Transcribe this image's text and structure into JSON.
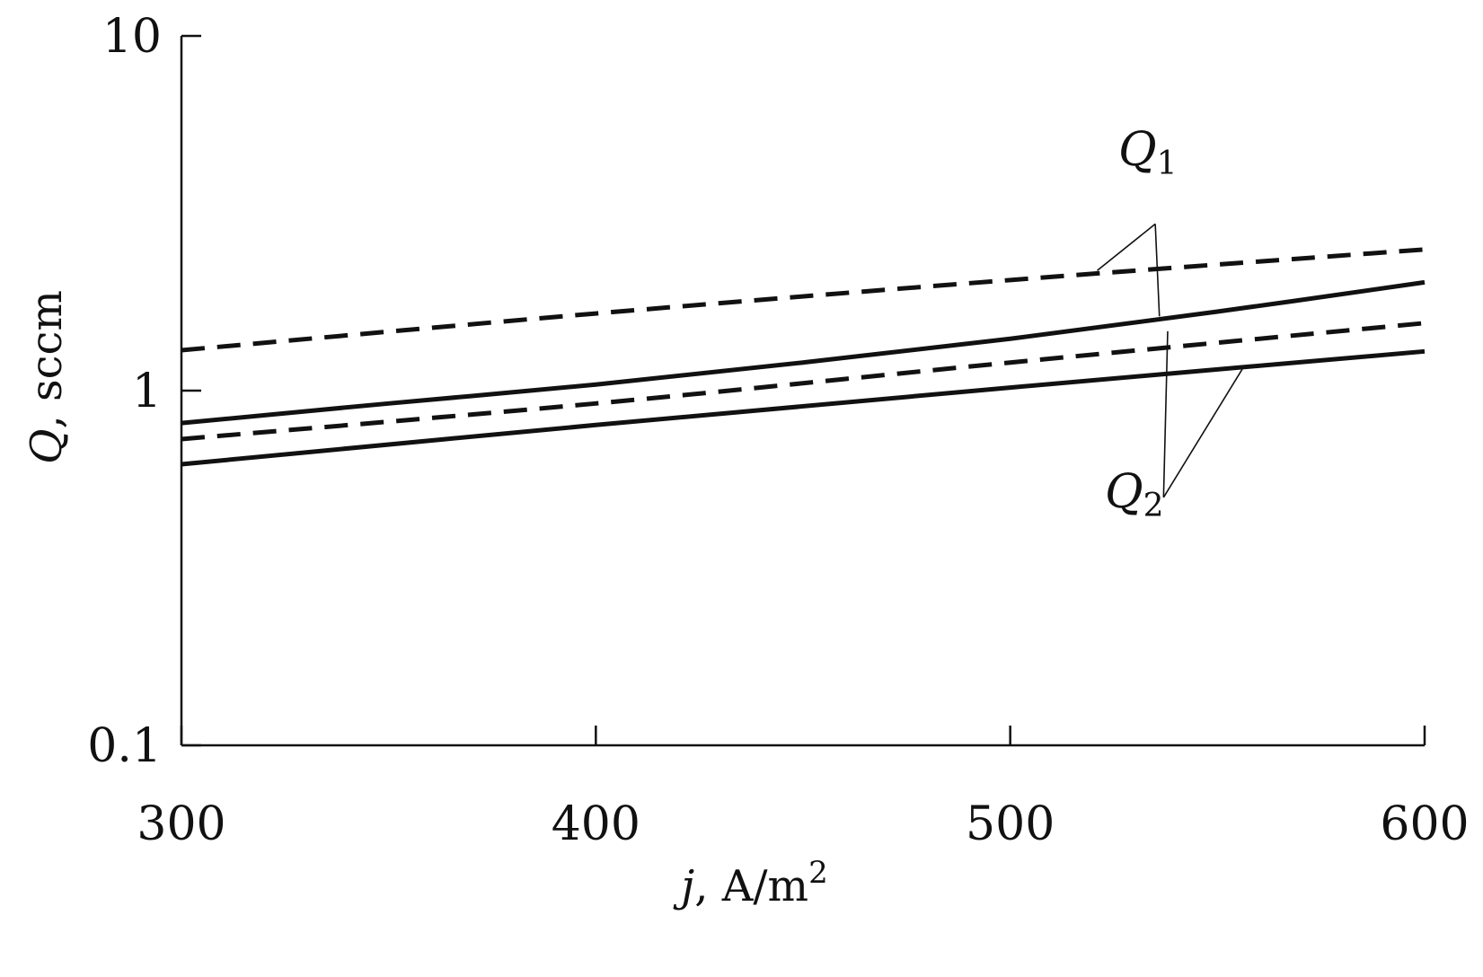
{
  "chart_data": {
    "type": "line",
    "x_scale": "linear",
    "y_scale": "log",
    "xlim": [
      300,
      600
    ],
    "ylim": [
      0.1,
      10
    ],
    "x_ticks": [
      300,
      400,
      500,
      600
    ],
    "x_tick_labels": [
      "300",
      "400",
      "500",
      "600"
    ],
    "y_ticks": [
      0.1,
      1,
      10
    ],
    "y_tick_labels": [
      "0.1",
      "1",
      "10"
    ],
    "xlabel": {
      "var": "j",
      "text": ", A/m",
      "sup": "2"
    },
    "ylabel": {
      "var": "Q",
      "text": ", sccm"
    },
    "grid": false,
    "series": [
      {
        "style": "dashed",
        "group": "Q1",
        "x": [
          300,
          400,
          500,
          600
        ],
        "y": [
          1.3,
          1.65,
          2.05,
          2.5
        ]
      },
      {
        "style": "solid",
        "group": "Q1",
        "x": [
          300,
          350,
          400,
          450,
          500,
          550,
          600
        ],
        "y": [
          0.81,
          0.92,
          1.04,
          1.2,
          1.4,
          1.67,
          2.02
        ]
      },
      {
        "style": "dashed",
        "group": "Q2",
        "x": [
          300,
          400,
          500,
          600
        ],
        "y": [
          0.73,
          0.92,
          1.2,
          1.55
        ]
      },
      {
        "style": "solid",
        "group": "Q2",
        "x": [
          300,
          400,
          500,
          600
        ],
        "y": [
          0.62,
          0.8,
          1.02,
          1.29
        ]
      }
    ],
    "annotations": [
      {
        "var": "Q",
        "sub": "1",
        "leaders_to": [
          [
            521,
            2.18
          ],
          [
            536,
            1.62
          ]
        ],
        "apex": [
          535,
          2.95
        ]
      },
      {
        "var": "Q",
        "sub": "2",
        "leaders_to": [
          [
            538,
            1.47
          ],
          [
            556,
            1.15
          ]
        ],
        "apex": [
          537,
          0.5
        ]
      }
    ]
  }
}
